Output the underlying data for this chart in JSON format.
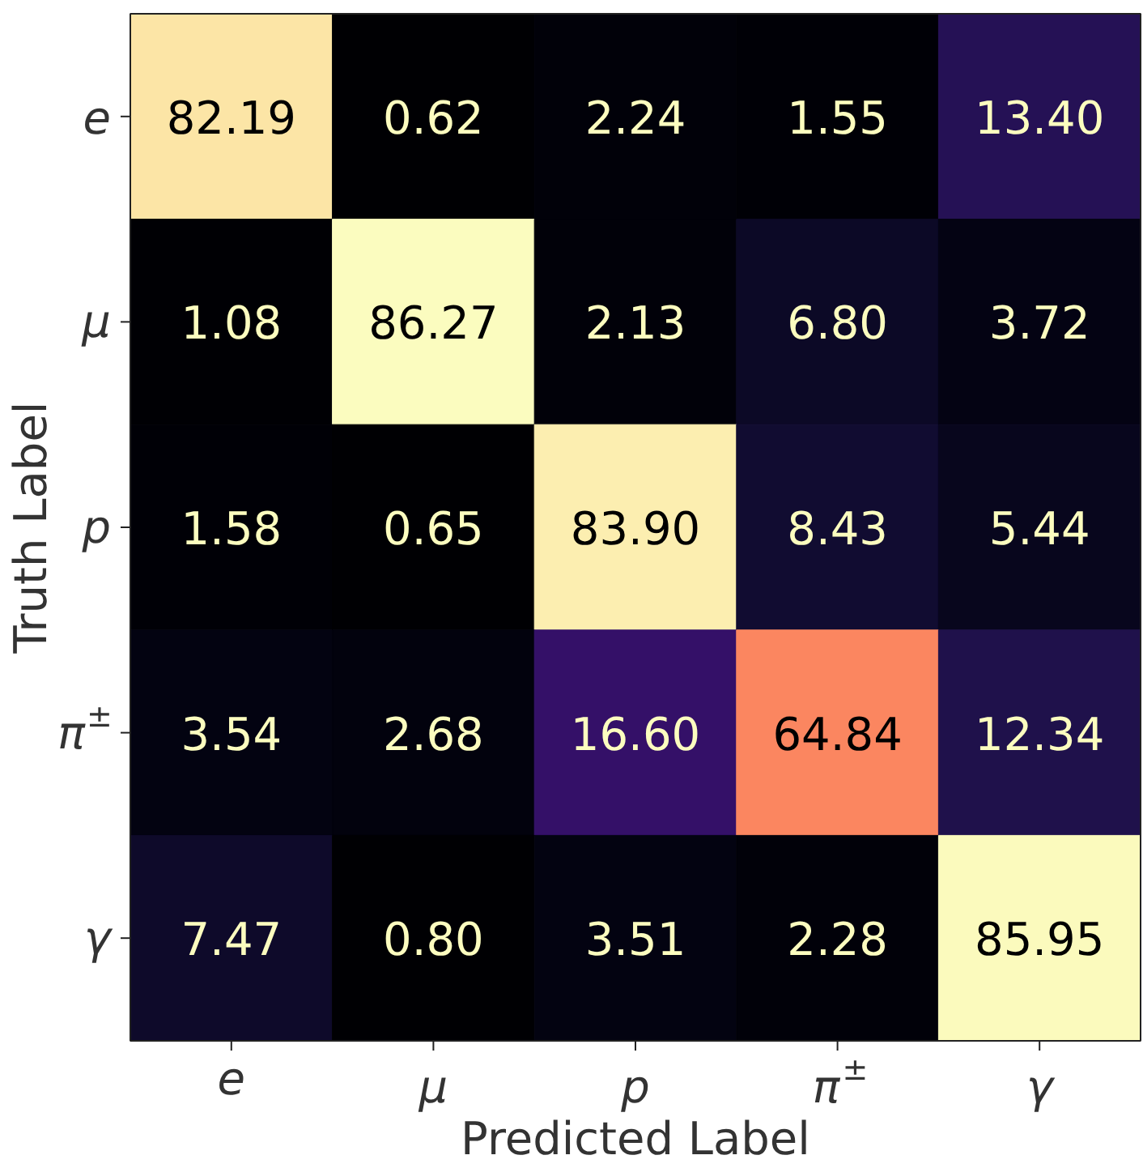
{
  "chart_data": {
    "type": "heatmap",
    "xlabel": "Predicted Label",
    "ylabel": "Truth Label",
    "categories": [
      "e",
      "μ",
      "p",
      "π$^{±}$",
      "γ"
    ],
    "y_categories": [
      "e",
      "μ",
      "p",
      "π$^{±}$",
      "γ"
    ],
    "cells": [
      [
        82.19,
        0.62,
        2.24,
        1.55,
        13.4
      ],
      [
        1.08,
        86.27,
        2.13,
        6.8,
        3.72
      ],
      [
        1.58,
        0.65,
        83.9,
        8.43,
        5.44
      ],
      [
        3.54,
        2.68,
        16.6,
        64.84,
        12.34
      ],
      [
        7.47,
        0.8,
        3.51,
        2.28,
        85.95
      ]
    ],
    "cell_labels": [
      [
        "82.19",
        "0.62",
        "2.24",
        "1.55",
        "13.40"
      ],
      [
        "1.08",
        "86.27",
        "2.13",
        "6.80",
        "3.72"
      ],
      [
        "1.58",
        "0.65",
        "83.90",
        "8.43",
        "5.44"
      ],
      [
        "3.54",
        "2.68",
        "16.60",
        "64.84",
        "12.34"
      ],
      [
        "7.47",
        "0.80",
        "3.51",
        "2.28",
        "85.95"
      ]
    ]
  }
}
